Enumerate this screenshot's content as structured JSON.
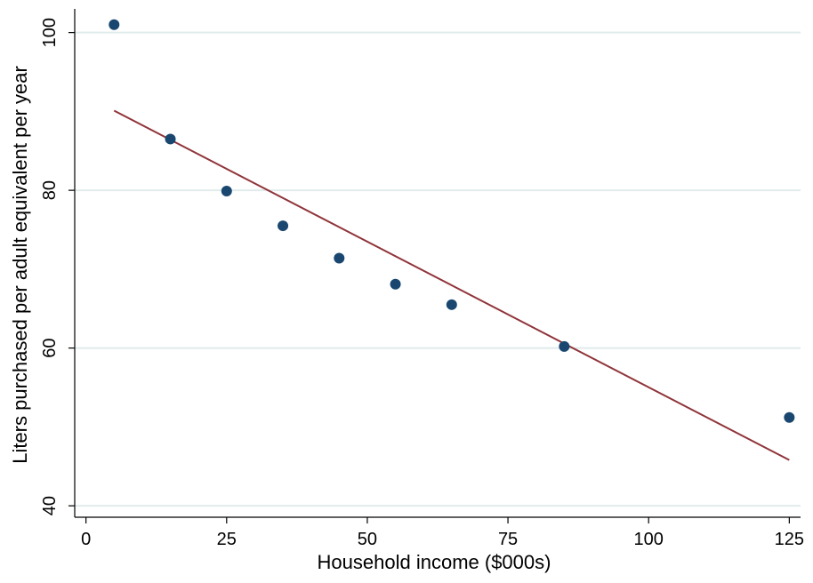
{
  "chart_data": {
    "type": "scatter",
    "xlabel": "Household income ($000s)",
    "ylabel": "Liters purchased per adult equivalent per year",
    "xlim": [
      -2,
      127
    ],
    "ylim": [
      39,
      103
    ],
    "x_ticks": [
      0,
      25,
      50,
      75,
      100,
      125
    ],
    "y_ticks": [
      40,
      60,
      80,
      100
    ],
    "x_tick_labels": [
      "0",
      "25",
      "50",
      "75",
      "100",
      "125"
    ],
    "y_tick_labels": [
      "40",
      "60",
      "80",
      "100"
    ],
    "grid": true,
    "grid_axis": "y",
    "legend": "none",
    "series": [
      {
        "kind": "scatter",
        "color": "#1a476f",
        "points": [
          {
            "x": 5,
            "y": 101.0
          },
          {
            "x": 15,
            "y": 86.5
          },
          {
            "x": 25,
            "y": 79.9
          },
          {
            "x": 35,
            "y": 75.5
          },
          {
            "x": 45,
            "y": 71.4
          },
          {
            "x": 55,
            "y": 68.1
          },
          {
            "x": 65,
            "y": 65.5
          },
          {
            "x": 85,
            "y": 60.2
          },
          {
            "x": 125,
            "y": 51.2
          }
        ]
      },
      {
        "kind": "line",
        "color": "#90353b",
        "points": [
          {
            "x": 5,
            "y": 90.1
          },
          {
            "x": 125,
            "y": 45.8
          }
        ]
      }
    ]
  }
}
